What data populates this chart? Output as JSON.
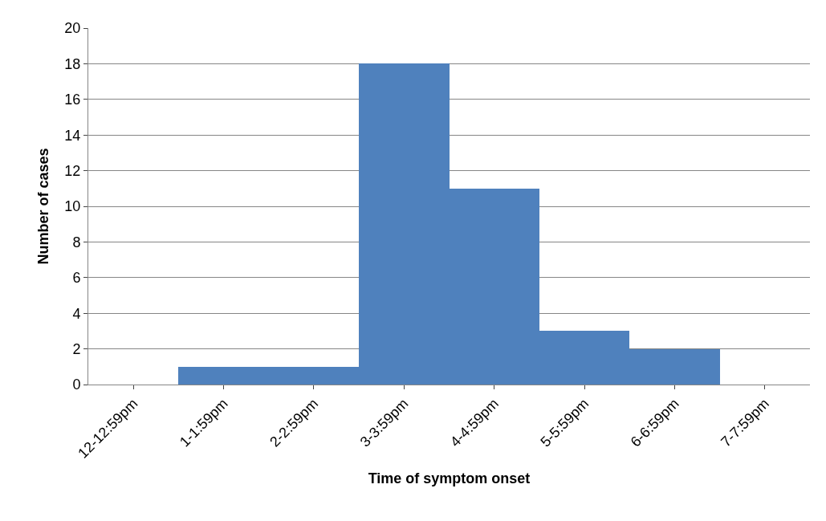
{
  "chart_data": {
    "type": "bar",
    "xlabel": "Time of symptom onset",
    "ylabel": "Number of cases",
    "categories": [
      "12-12:59pm",
      "1-1:59pm",
      "2-2:59pm",
      "3-3:59pm",
      "4-4:59pm",
      "5-5:59pm",
      "6-6:59pm",
      "7-7:59pm"
    ],
    "values": [
      0,
      1,
      1,
      18,
      11,
      3,
      2,
      0
    ],
    "color": "#4f81bd",
    "ylim": [
      0,
      20
    ],
    "yticks": [
      0,
      2,
      4,
      6,
      8,
      10,
      12,
      14,
      16,
      18,
      20
    ],
    "grid": "y"
  }
}
